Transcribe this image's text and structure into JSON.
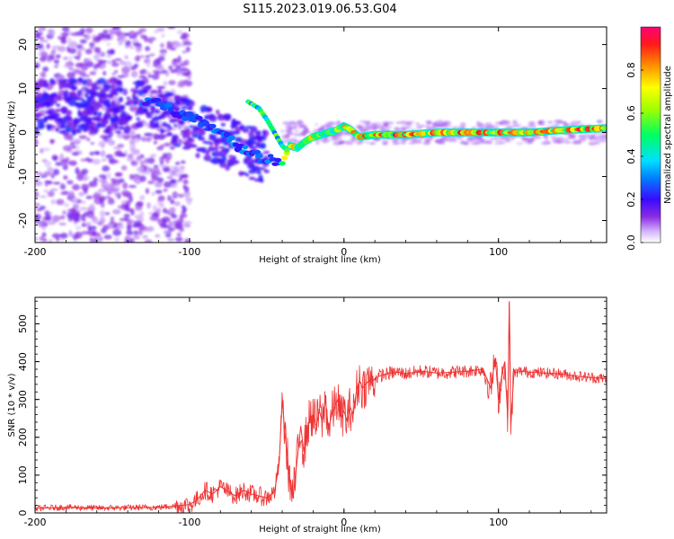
{
  "title": "S115.2023.019.06.53.G04",
  "chart_data": [
    {
      "type": "heatmap",
      "xlabel": "Height of straight line (km)",
      "ylabel": "Frequency (Hz)",
      "xlim": [
        -200,
        170
      ],
      "ylim": [
        -25,
        24
      ],
      "x_ticks": [
        -200,
        -100,
        0,
        100
      ],
      "y_ticks": [
        -20,
        -10,
        0,
        10,
        20
      ],
      "colorbar": {
        "label": "Normalized spectral amplitude",
        "range": [
          0,
          1
        ],
        "ticks": [
          0.0,
          0.2,
          0.4,
          0.6,
          0.8
        ],
        "tick_labels": [
          "0.0",
          "0.2",
          "0.4",
          "0.6",
          "0.8"
        ],
        "colormap": "rainbow"
      },
      "main_trace": {
        "x": [
          -130,
          -120,
          -110,
          -100,
          -90,
          -80,
          -70,
          -60,
          -50,
          -45,
          -40,
          -35,
          -30,
          -25,
          -20,
          -15,
          -10,
          -5,
          0,
          5,
          10,
          20,
          40,
          60,
          80,
          100,
          120,
          140,
          170
        ],
        "y": [
          7,
          6.5,
          5,
          3.5,
          2,
          0,
          -3,
          -5,
          -6,
          -6.5,
          -7,
          -3,
          -3.5,
          -2,
          -1,
          -0.5,
          0,
          0.5,
          1.5,
          0.5,
          -1,
          -0.5,
          -0.5,
          0,
          0,
          0,
          0,
          0.5,
          1
        ]
      },
      "secondary_trace": {
        "x": [
          -62,
          -55,
          -50,
          -45,
          -40,
          -37
        ],
        "y": [
          7,
          5.5,
          3,
          0,
          -3,
          -4
        ]
      }
    },
    {
      "type": "line",
      "xlabel": "Height of straight line (km)",
      "ylabel": "SNR (10 * v/v)",
      "xlim": [
        -200,
        170
      ],
      "ylim": [
        0,
        570
      ],
      "x_ticks": [
        -200,
        -100,
        0,
        100
      ],
      "y_ticks": [
        0,
        100,
        200,
        300,
        400,
        500
      ],
      "color": "#ee3333",
      "series": [
        {
          "x": [
            -200,
            -180,
            -160,
            -140,
            -120,
            -110,
            -100,
            -95,
            -90,
            -85,
            -80,
            -75,
            -70,
            -65,
            -60,
            -55,
            -50,
            -45,
            -42,
            -40,
            -38,
            -35,
            -33,
            -30,
            -28,
            -26,
            -24,
            -22,
            -20,
            -18,
            -16,
            -14,
            -12,
            -10,
            -8,
            -6,
            -4,
            -2,
            0,
            2,
            4,
            6,
            8,
            10,
            12,
            14,
            16,
            18,
            20,
            22,
            25,
            30,
            35,
            40,
            50,
            60,
            70,
            80,
            90,
            95,
            98,
            100,
            102,
            104,
            106,
            107,
            108,
            110,
            115,
            120,
            130,
            140,
            150,
            160,
            170
          ],
          "y": [
            12,
            15,
            13,
            14,
            15,
            18,
            22,
            35,
            60,
            50,
            70,
            55,
            45,
            60,
            50,
            45,
            40,
            55,
            130,
            300,
            200,
            80,
            40,
            150,
            230,
            160,
            220,
            250,
            260,
            230,
            270,
            240,
            300,
            220,
            260,
            280,
            300,
            250,
            270,
            240,
            280,
            260,
            320,
            350,
            330,
            340,
            350,
            345,
            355,
            360,
            365,
            370,
            372,
            368,
            375,
            370,
            372,
            375,
            380,
            330,
            410,
            300,
            360,
            400,
            250,
            560,
            230,
            370,
            375,
            372,
            370,
            368,
            362,
            358,
            355
          ]
        }
      ]
    }
  ]
}
